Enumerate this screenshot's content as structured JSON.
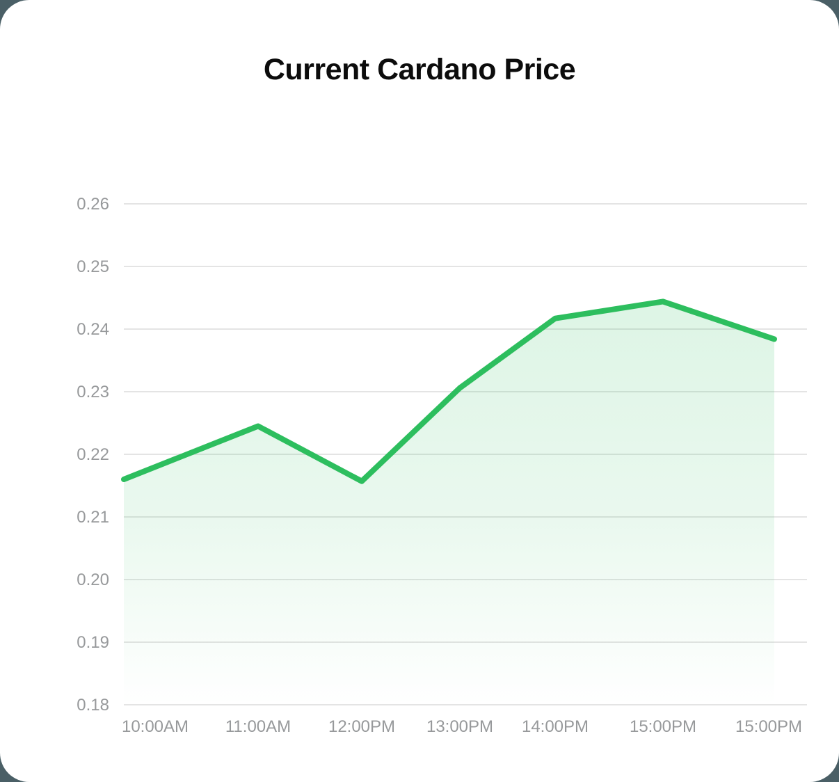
{
  "page": {
    "background_color": "#4a5f66",
    "card_color": "#ffffff"
  },
  "chart_data": {
    "type": "area",
    "title": "Current Cardano Price",
    "categories": [
      "10:00AM",
      "11:00AM",
      "12:00PM",
      "13:00PM",
      "14:00PM",
      "15:00PM",
      "15:00PM"
    ],
    "values": [
      0.216,
      0.2245,
      0.2157,
      0.2306,
      0.2417,
      0.2444,
      0.2384
    ],
    "xlabel": "",
    "ylabel": "",
    "ylim": [
      0.18,
      0.26
    ],
    "y_tick_labels": [
      "0.26",
      "0.25",
      "0.24",
      "0.23",
      "0.22",
      "0.21",
      "0.20",
      "0.19",
      "0.18"
    ],
    "grid": true,
    "legend": false,
    "line_color": "#2dbe5e",
    "area_color": "#2dbe5e",
    "gridline_color": "#e4e4e4",
    "tick_color": "#97999b",
    "title_color": "#0c0c0c"
  }
}
